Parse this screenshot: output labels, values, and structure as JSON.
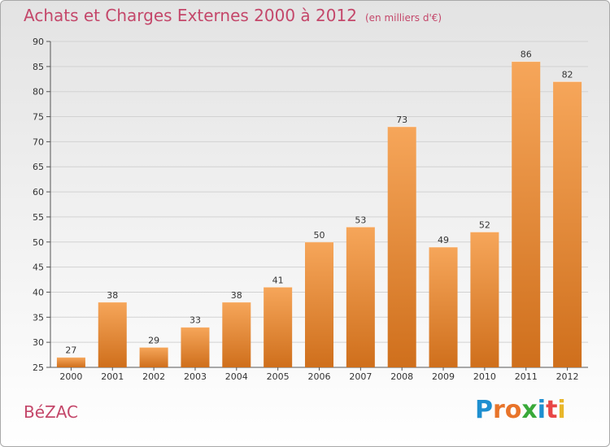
{
  "title": "Achats et Charges Externes 2000 à 2012",
  "subtitle": "(en milliers d'€)",
  "commune": "BéZAC",
  "logo": {
    "letters": [
      "P",
      "r",
      "o",
      "x",
      "i",
      "t",
      "i"
    ],
    "colors": [
      "#1e8fd0",
      "#e8742a",
      "#e8742a",
      "#39a939",
      "#1e8fd0",
      "#e84646",
      "#e8b62a"
    ]
  },
  "colors": {
    "bar_top": "#f6a65a",
    "bar_bottom": "#cf6f1c",
    "text_accent": "#c4476a"
  },
  "chart_data": {
    "type": "bar",
    "categories": [
      "2000",
      "2001",
      "2002",
      "2003",
      "2004",
      "2005",
      "2006",
      "2007",
      "2008",
      "2009",
      "2010",
      "2011",
      "2012"
    ],
    "values": [
      27,
      38,
      29,
      33,
      38,
      41,
      50,
      53,
      73,
      49,
      52,
      86,
      82
    ],
    "ylim": [
      25,
      90
    ],
    "yticks": [
      25,
      30,
      35,
      40,
      45,
      50,
      55,
      60,
      65,
      70,
      75,
      80,
      85,
      90
    ],
    "grid": true,
    "data_labels": true
  }
}
